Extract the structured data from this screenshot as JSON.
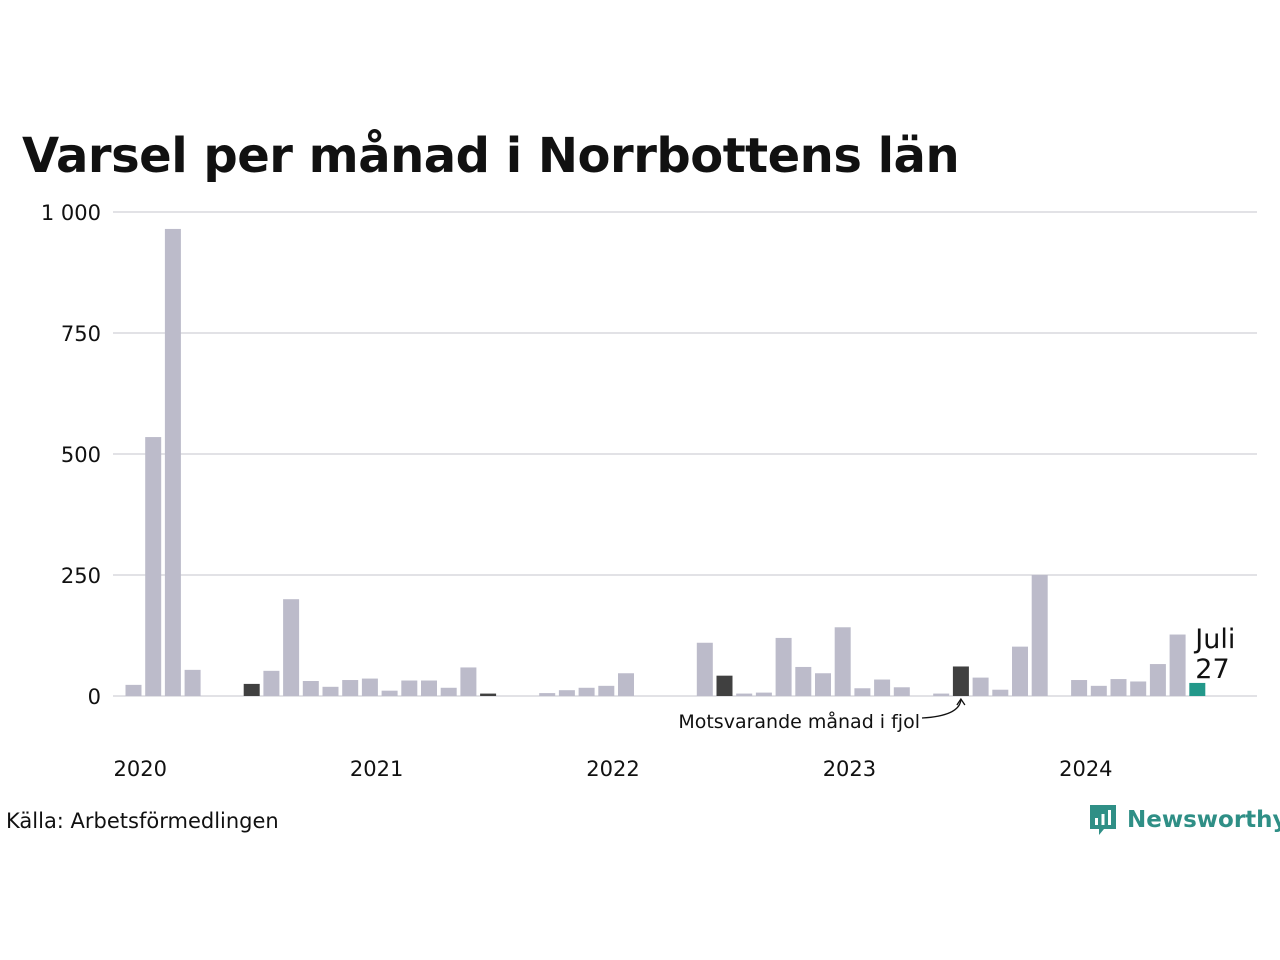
{
  "title": "Varsel per månad i Norrbottens län",
  "source": "Källa: Arbetsförmedlingen",
  "brand": "Newsworthy",
  "icons": {
    "brand_logo": "bar-chart-speech-bubble-icon"
  },
  "colors": {
    "bar": "#bcbbca",
    "same_month_last_years": "#404040",
    "current": "#23988a",
    "grid": "#e2e2e6",
    "brand": "#2f8f86"
  },
  "annotation": "Motsvarande månad i fjol",
  "last_point": {
    "label": "Juli",
    "value_text": "27"
  },
  "chart_data": {
    "type": "bar",
    "title": "Varsel per månad i Norrbottens län",
    "xlabel": "",
    "ylabel": "",
    "ylim": [
      0,
      1000
    ],
    "yticks": [
      0,
      250,
      500,
      750,
      1000
    ],
    "ytick_labels": [
      "0",
      "250",
      "500",
      "750",
      "1 000"
    ],
    "x_start": "2020-01",
    "xtick_labels": [
      "2020",
      "2021",
      "2022",
      "2023",
      "2024"
    ],
    "grid": true,
    "legend": "none",
    "values": [
      23,
      535,
      965,
      54,
      0,
      0,
      25,
      52,
      200,
      31,
      19,
      33,
      36,
      11,
      32,
      32,
      17,
      59,
      5,
      0,
      0,
      6,
      12,
      17,
      21,
      47,
      0,
      0,
      0,
      110,
      42,
      5,
      7,
      120,
      60,
      47,
      142,
      16,
      34,
      18,
      0,
      5,
      61,
      38,
      13,
      102,
      250,
      0,
      33,
      21,
      35,
      30,
      66,
      127,
      27
    ],
    "highlight_indices": [
      6,
      18,
      30,
      42
    ],
    "current_index": 54
  }
}
